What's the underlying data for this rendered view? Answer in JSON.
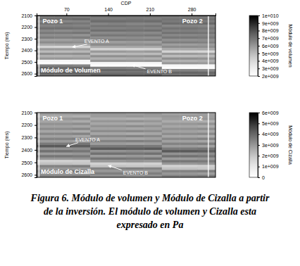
{
  "chart_data": [
    {
      "type": "heatmap",
      "title": "Módulo de Volumen",
      "x_label": "CDP",
      "y_label": "Tiempo (ms)",
      "x": [
        35,
        65,
        95,
        125,
        155,
        185,
        215,
        245,
        275,
        305
      ],
      "y": [
        2110,
        2130,
        2150,
        2170,
        2190,
        2210,
        2230,
        2250,
        2270,
        2290,
        2310,
        2330,
        2350,
        2370,
        2390,
        2410,
        2430,
        2450,
        2470,
        2490,
        2510,
        2530,
        2550,
        2570,
        2590,
        2610
      ],
      "xlim": [
        20,
        320
      ],
      "xticks": [
        70,
        140,
        210,
        280
      ],
      "ylim": [
        2100,
        2620
      ],
      "yticks": [
        2100,
        2200,
        2300,
        2400,
        2500,
        2600
      ],
      "values": [
        [
          6800000000.0,
          6900000000.0,
          6800000000.0,
          7000000000.0,
          7100000000.0,
          7000000000.0,
          7000000000.0,
          6900000000.0,
          6800000000.0,
          6900000000.0
        ],
        [
          7200000000.0,
          7200000000.0,
          7300000000.0,
          6800000000.0,
          6800000000.0,
          6900000000.0,
          6800000000.0,
          7000000000.0,
          7000000000.0,
          7100000000.0
        ],
        [
          6500000000.0,
          6400000000.0,
          6500000000.0,
          7200000000.0,
          7200000000.0,
          7100000000.0,
          7200000000.0,
          6800000000.0,
          6900000000.0,
          6800000000.0
        ],
        [
          7000000000.0,
          7000000000.0,
          6900000000.0,
          6500000000.0,
          6600000000.0,
          6500000000.0,
          6500000000.0,
          7200000000.0,
          7200000000.0,
          7300000000.0
        ],
        [
          6600000000.0,
          6700000000.0,
          6600000000.0,
          7000000000.0,
          7000000000.0,
          6900000000.0,
          7000000000.0,
          6500000000.0,
          6600000000.0,
          6500000000.0
        ],
        [
          7100000000.0,
          7100000000.0,
          7000000000.0,
          6600000000.0,
          6600000000.0,
          6700000000.0,
          6600000000.0,
          7000000000.0,
          7000000000.0,
          6900000000.0
        ],
        [
          6400000000.0,
          6300000000.0,
          6400000000.0,
          7100000000.0,
          7100000000.0,
          7000000000.0,
          7100000000.0,
          6600000000.0,
          6700000000.0,
          6600000000.0
        ],
        [
          6900000000.0,
          6900000000.0,
          7000000000.0,
          6400000000.0,
          6400000000.0,
          6500000000.0,
          6400000000.0,
          7100000000.0,
          7100000000.0,
          7000000000.0
        ],
        [
          6200000000.0,
          6200000000.0,
          6100000000.0,
          6900000000.0,
          6900000000.0,
          6800000000.0,
          6900000000.0,
          6400000000.0,
          6400000000.0,
          6500000000.0
        ],
        [
          6700000000.0,
          6600000000.0,
          6700000000.0,
          6200000000.0,
          6200000000.0,
          6300000000.0,
          6200000000.0,
          6900000000.0,
          6900000000.0,
          6800000000.0
        ],
        [
          5800000000.0,
          5800000000.0,
          5900000000.0,
          6700000000.0,
          6700000000.0,
          6600000000.0,
          6700000000.0,
          6200000000.0,
          6200000000.0,
          6300000000.0
        ],
        [
          6300000000.0,
          6300000000.0,
          6200000000.0,
          5800000000.0,
          5800000000.0,
          5900000000.0,
          5800000000.0,
          6700000000.0,
          6700000000.0,
          6600000000.0
        ],
        [
          5500000000.0,
          5600000000.0,
          5500000000.0,
          6300000000.0,
          6300000000.0,
          6200000000.0,
          6300000000.0,
          5800000000.0,
          5800000000.0,
          5900000000.0
        ],
        [
          4200000000.0,
          4100000000.0,
          4200000000.0,
          5500000000.0,
          5500000000.0,
          5600000000.0,
          5500000000.0,
          6300000000.0,
          6300000000.0,
          6200000000.0
        ],
        [
          5900000000.0,
          5900000000.0,
          5800000000.0,
          4200000000.0,
          4200000000.0,
          4100000000.0,
          4200000000.0,
          5500000000.0,
          5500000000.0,
          5600000000.0
        ],
        [
          5000000000.0,
          5000000000.0,
          5100000000.0,
          5900000000.0,
          5900000000.0,
          5800000000.0,
          5900000000.0,
          4200000000.0,
          4200000000.0,
          4100000000.0
        ],
        [
          6200000000.0,
          6100000000.0,
          6200000000.0,
          5000000000.0,
          5000000000.0,
          5100000000.0,
          5000000000.0,
          5900000000.0,
          5900000000.0,
          5800000000.0
        ],
        [
          5300000000.0,
          5300000000.0,
          5400000000.0,
          6200000000.0,
          6200000000.0,
          6100000000.0,
          6200000000.0,
          5000000000.0,
          5000000000.0,
          5100000000.0
        ],
        [
          6000000000.0,
          6000000000.0,
          5900000000.0,
          5300000000.0,
          5300000000.0,
          5400000000.0,
          5300000000.0,
          6200000000.0,
          6200000000.0,
          6100000000.0
        ],
        [
          2600000000.0,
          2500000000.0,
          2600000000.0,
          6000000000.0,
          6000000000.0,
          5900000000.0,
          6000000000.0,
          5300000000.0,
          5300000000.0,
          5400000000.0
        ],
        [
          2200000000.0,
          2200000000.0,
          2300000000.0,
          2600000000.0,
          2600000000.0,
          2500000000.0,
          2600000000.0,
          6000000000.0,
          6000000000.0,
          5900000000.0
        ],
        [
          6600000000.0,
          6600000000.0,
          6500000000.0,
          2200000000.0,
          2200000000.0,
          2300000000.0,
          2200000000.0,
          2600000000.0,
          2600000000.0,
          2500000000.0
        ],
        [
          7400000000.0,
          7300000000.0,
          7400000000.0,
          6600000000.0,
          6600000000.0,
          6500000000.0,
          6600000000.0,
          2200000000.0,
          2200000000.0,
          2300000000.0
        ],
        [
          7000000000.0,
          7000000000.0,
          7100000000.0,
          7400000000.0,
          7400000000.0,
          7300000000.0,
          7400000000.0,
          6600000000.0,
          6600000000.0,
          6500000000.0
        ],
        [
          7600000000.0,
          7600000000.0,
          7500000000.0,
          7000000000.0,
          7000000000.0,
          7100000000.0,
          7000000000.0,
          7400000000.0,
          7400000000.0,
          7300000000.0
        ],
        [
          7200000000.0,
          7100000000.0,
          7200000000.0,
          7600000000.0,
          7600000000.0,
          7500000000.0,
          7600000000.0,
          7000000000.0,
          7000000000.0,
          7100000000.0
        ]
      ],
      "colorbar": {
        "label": "Módulo de volumen",
        "range": [
          2000000000.0,
          10000000000.0
        ],
        "ticks": [
          {
            "value": 10000000000.0,
            "label": "1e+010"
          },
          {
            "value": 9000000000.0,
            "label": "9e+009"
          },
          {
            "value": 8000000000.0,
            "label": "8e+009"
          },
          {
            "value": 7000000000.0,
            "label": "7e+009"
          },
          {
            "value": 6000000000.0,
            "label": "6e+009"
          },
          {
            "value": 5000000000.0,
            "label": "5e+009"
          },
          {
            "value": 4000000000.0,
            "label": "4e+009"
          },
          {
            "value": 3000000000.0,
            "label": "3e+009"
          },
          {
            "value": 2000000000.0,
            "label": "2e+009"
          }
        ]
      },
      "wells": [
        {
          "name": "Pozo 1",
          "cdp": 24
        },
        {
          "name": "Pozo 2",
          "cdp": 308
        }
      ],
      "annotations": [
        {
          "text": "EVENTO A",
          "x": 100,
          "y": 2335,
          "point": [
            80,
            2372
          ]
        },
        {
          "text": "EVENTO B",
          "x": 205,
          "y": 2595,
          "point": [
            180,
            2525
          ]
        }
      ]
    },
    {
      "type": "heatmap",
      "title": "Módulo de Cizalla",
      "y_label": "Tiempo (ms)",
      "tick_labels": "y",
      "x": [
        35,
        65,
        95,
        125,
        155,
        185,
        215,
        245,
        275,
        305
      ],
      "y": [
        2110,
        2130,
        2150,
        2170,
        2190,
        2210,
        2230,
        2250,
        2270,
        2290,
        2310,
        2330,
        2350,
        2370,
        2390,
        2410,
        2430,
        2450,
        2470,
        2490,
        2510,
        2530,
        2550,
        2570,
        2590,
        2610
      ],
      "xlim": [
        20,
        320
      ],
      "ylim": [
        2100,
        2620
      ],
      "yticks": [
        2100,
        2200,
        2300,
        2400,
        2500,
        2600
      ],
      "values": [
        [
          2900000000.0,
          2900000000.0,
          3000000000.0,
          3000000000.0,
          3000000000.0,
          2900000000.0,
          3000000000.0,
          2800000000.0,
          2800000000.0,
          2900000000.0
        ],
        [
          2600000000.0,
          2600000000.0,
          2500000000.0,
          2900000000.0,
          2900000000.0,
          3000000000.0,
          2900000000.0,
          3000000000.0,
          3000000000.0,
          2900000000.0
        ],
        [
          3000000000.0,
          3000000000.0,
          3100000000.0,
          2600000000.0,
          2600000000.0,
          2500000000.0,
          2600000000.0,
          2900000000.0,
          2900000000.0,
          3000000000.0
        ],
        [
          2700000000.0,
          2700000000.0,
          2600000000.0,
          3000000000.0,
          3000000000.0,
          3100000000.0,
          3000000000.0,
          2600000000.0,
          2600000000.0,
          2500000000.0
        ],
        [
          3100000000.0,
          3100000000.0,
          3200000000.0,
          2700000000.0,
          2700000000.0,
          2600000000.0,
          2700000000.0,
          3000000000.0,
          3000000000.0,
          3100000000.0
        ],
        [
          2800000000.0,
          2800000000.0,
          2700000000.0,
          3100000000.0,
          3100000000.0,
          3200000000.0,
          3100000000.0,
          2700000000.0,
          2700000000.0,
          2600000000.0
        ],
        [
          3200000000.0,
          3200000000.0,
          3300000000.0,
          2800000000.0,
          2800000000.0,
          2700000000.0,
          2800000000.0,
          3100000000.0,
          3100000000.0,
          3200000000.0
        ],
        [
          2700000000.0,
          2700000000.0,
          2600000000.0,
          3200000000.0,
          3200000000.0,
          3300000000.0,
          3200000000.0,
          2800000000.0,
          2800000000.0,
          2700000000.0
        ],
        [
          3300000000.0,
          3300000000.0,
          3400000000.0,
          2700000000.0,
          2700000000.0,
          2600000000.0,
          2700000000.0,
          3200000000.0,
          3200000000.0,
          3300000000.0
        ],
        [
          2800000000.0,
          2800000000.0,
          2700000000.0,
          3300000000.0,
          3300000000.0,
          3400000000.0,
          3300000000.0,
          2700000000.0,
          2700000000.0,
          2600000000.0
        ],
        [
          3400000000.0,
          3400000000.0,
          3500000000.0,
          2800000000.0,
          2800000000.0,
          2700000000.0,
          2800000000.0,
          3300000000.0,
          3300000000.0,
          3400000000.0
        ],
        [
          2900000000.0,
          2900000000.0,
          2800000000.0,
          3400000000.0,
          3400000000.0,
          3500000000.0,
          3400000000.0,
          2800000000.0,
          2800000000.0,
          2700000000.0
        ],
        [
          3600000000.0,
          3600000000.0,
          3700000000.0,
          2900000000.0,
          2900000000.0,
          2800000000.0,
          2900000000.0,
          3400000000.0,
          3400000000.0,
          3500000000.0
        ],
        [
          4300000000.0,
          4300000000.0,
          4200000000.0,
          3600000000.0,
          3600000000.0,
          3700000000.0,
          3600000000.0,
          2900000000.0,
          2900000000.0,
          2800000000.0
        ],
        [
          3100000000.0,
          3100000000.0,
          3200000000.0,
          4300000000.0,
          4300000000.0,
          4200000000.0,
          4300000000.0,
          3600000000.0,
          3600000000.0,
          3700000000.0
        ],
        [
          3800000000.0,
          3800000000.0,
          3700000000.0,
          3100000000.0,
          3100000000.0,
          3200000000.0,
          3100000000.0,
          4300000000.0,
          4300000000.0,
          4200000000.0
        ],
        [
          2900000000.0,
          2900000000.0,
          3000000000.0,
          3800000000.0,
          3800000000.0,
          3700000000.0,
          3800000000.0,
          3100000000.0,
          3100000000.0,
          3200000000.0
        ],
        [
          3700000000.0,
          3700000000.0,
          3600000000.0,
          2900000000.0,
          2900000000.0,
          3000000000.0,
          2900000000.0,
          3800000000.0,
          3800000000.0,
          3700000000.0
        ],
        [
          3000000000.0,
          3000000000.0,
          3100000000.0,
          3700000000.0,
          3700000000.0,
          3600000000.0,
          3700000000.0,
          2900000000.0,
          2900000000.0,
          3000000000.0
        ],
        [
          1700000000.0,
          1700000000.0,
          1800000000.0,
          3000000000.0,
          3000000000.0,
          3100000000.0,
          3000000000.0,
          3700000000.0,
          3700000000.0,
          3600000000.0
        ],
        [
          2100000000.0,
          2100000000.0,
          2000000000.0,
          1700000000.0,
          1700000000.0,
          1800000000.0,
          1700000000.0,
          3000000000.0,
          3000000000.0,
          3100000000.0
        ],
        [
          3400000000.0,
          3400000000.0,
          3500000000.0,
          2100000000.0,
          2100000000.0,
          2000000000.0,
          2100000000.0,
          1700000000.0,
          1700000000.0,
          1800000000.0
        ],
        [
          3000000000.0,
          3000000000.0,
          2900000000.0,
          3400000000.0,
          3400000000.0,
          3500000000.0,
          3400000000.0,
          2100000000.0,
          2100000000.0,
          2000000000.0
        ],
        [
          3500000000.0,
          3500000000.0,
          3600000000.0,
          3000000000.0,
          3000000000.0,
          2900000000.0,
          3000000000.0,
          3400000000.0,
          3400000000.0,
          3500000000.0
        ],
        [
          3100000000.0,
          3100000000.0,
          3000000000.0,
          3500000000.0,
          3500000000.0,
          3600000000.0,
          3500000000.0,
          3000000000.0,
          3000000000.0,
          2900000000.0
        ],
        [
          3400000000.0,
          3400000000.0,
          3500000000.0,
          3100000000.0,
          3100000000.0,
          3000000000.0,
          3100000000.0,
          3500000000.0,
          3500000000.0,
          3600000000.0
        ]
      ],
      "colorbar": {
        "label": "Módulo de Cizalla",
        "range": [
          0,
          6000000000.0
        ],
        "ticks": [
          {
            "value": 6000000000.0,
            "label": "6e+009"
          },
          {
            "value": 5000000000.0,
            "label": "5e+009"
          },
          {
            "value": 4000000000.0,
            "label": "4e+009"
          },
          {
            "value": 3000000000.0,
            "label": "3e+009"
          },
          {
            "value": 2000000000.0,
            "label": "2e+009"
          },
          {
            "value": 1000000000.0,
            "label": "1e+009"
          },
          0
        ]
      },
      "wells": [
        {
          "name": "Pozo 1",
          "cdp": 24
        },
        {
          "name": "Pozo 2",
          "cdp": 308
        }
      ],
      "annotations": [
        {
          "text": "EVENTO A",
          "x": 85,
          "y": 2330,
          "point": [
            70,
            2372
          ]
        },
        {
          "text": "EVENTO B",
          "x": 165,
          "y": 2595,
          "point": [
            140,
            2525
          ]
        }
      ]
    }
  ],
  "caption": {
    "label": "Figura 6.",
    "text": "Módulo de volumen y Módulo de Cizalla a partir de la inversión. El módulo de volumen y Cizalla esta expresado en Pa"
  }
}
